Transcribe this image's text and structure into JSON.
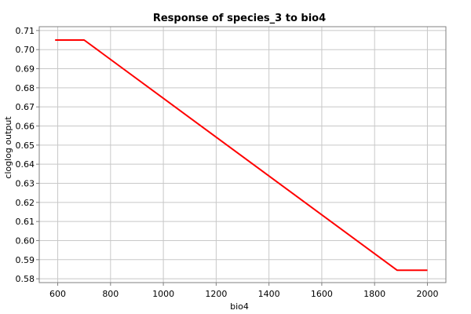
{
  "chart_data": {
    "type": "line",
    "title": "Response of species_3 to bio4",
    "xlabel": "bio4",
    "ylabel": "cloglog output",
    "xlim": [
      530,
      2070
    ],
    "ylim": [
      0.578,
      0.712
    ],
    "x_ticks": [
      600,
      800,
      1000,
      1200,
      1400,
      1600,
      1800,
      2000
    ],
    "y_ticks": [
      0.58,
      0.59,
      0.6,
      0.61,
      0.62,
      0.63,
      0.64,
      0.65,
      0.66,
      0.67,
      0.68,
      0.69,
      0.7,
      0.71
    ],
    "x_tick_labels": [
      "600",
      "800",
      "1000",
      "1200",
      "1400",
      "1600",
      "1800",
      "2000"
    ],
    "y_tick_labels": [
      "0.58",
      "0.59",
      "0.60",
      "0.61",
      "0.62",
      "0.63",
      "0.64",
      "0.65",
      "0.66",
      "0.67",
      "0.68",
      "0.69",
      "0.70",
      "0.71"
    ],
    "grid": true,
    "series": [
      {
        "color": "#ff0000",
        "x": [
          590,
          700,
          1885,
          2000
        ],
        "y": [
          0.705,
          0.705,
          0.5845,
          0.5845
        ]
      }
    ]
  }
}
